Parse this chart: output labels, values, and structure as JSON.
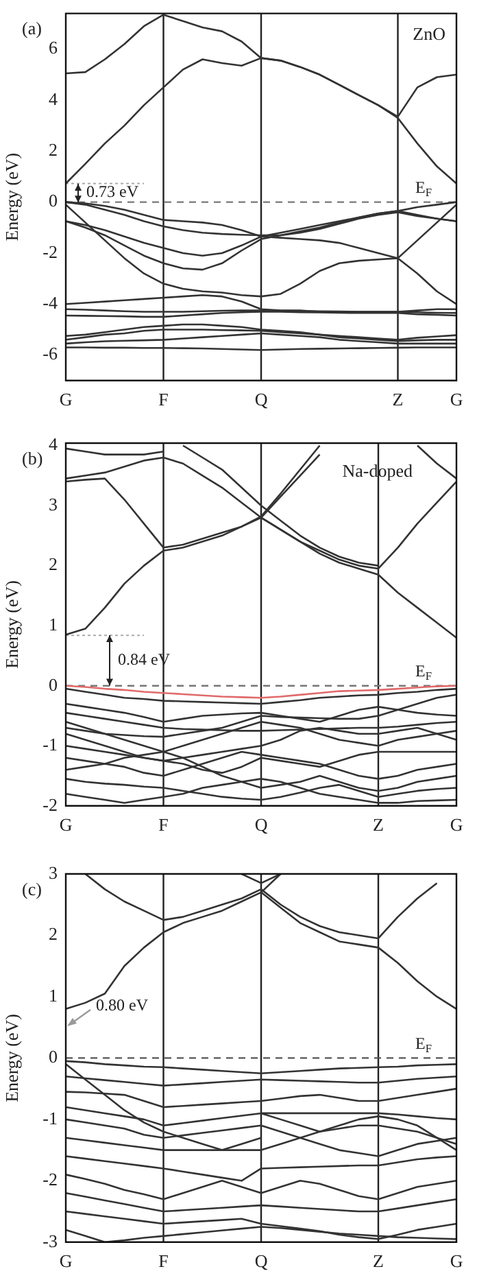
{
  "chart_data": [
    {
      "type": "line",
      "title": "(a)",
      "ylabel": "Energy (eV)",
      "categories": [
        "G",
        null,
        null,
        null,
        null,
        "F",
        null,
        null,
        null,
        null,
        "Q",
        null,
        null,
        null,
        null,
        null,
        null,
        "Z",
        null,
        null,
        "G"
      ],
      "ylim": [
        -7,
        7.4
      ],
      "yticks": [
        -6,
        -4,
        -2,
        0,
        2,
        4,
        6
      ],
      "ref_lines": [
        {
          "axis": "x",
          "value": "F",
          "color": "#222222"
        },
        {
          "axis": "x",
          "value": "Q",
          "color": "#222222"
        },
        {
          "axis": "x",
          "value": "Z",
          "color": "#222222"
        },
        {
          "axis": "y",
          "value": 0,
          "label": "E$_{F}$",
          "line_style": "dashed",
          "color": "#777777"
        },
        {
          "axis": "y",
          "value": 0.73,
          "line_style": "dotted",
          "color": "#aaaaaa"
        }
      ],
      "annotations": [
        "ZnO",
        "0.73 eV"
      ],
      "series": [
        {
          "color": "#333333",
          "values": [
            0.73,
            1.5,
            2.3,
            3.0,
            3.8,
            4.5,
            5.2,
            5.6,
            5.45,
            5.35,
            5.65,
            5.55,
            5.3,
            5.0,
            4.6,
            4.2,
            3.8,
            3.3,
            2.3,
            1.4,
            0.73
          ]
        },
        {
          "color": "#333333",
          "values": [
            5.05,
            5.1,
            5.6,
            6.2,
            6.9,
            7.35,
            7.1,
            6.85,
            6.7,
            6.3,
            5.65,
            5.55,
            5.3,
            5.0,
            4.6,
            4.2,
            3.8,
            3.35,
            4.5,
            4.9,
            5.0
          ]
        },
        {
          "color": "#333333",
          "values": [
            0,
            -0.05,
            -0.15,
            -0.3,
            -0.5,
            -0.7,
            -0.75,
            -0.8,
            -0.9,
            -1.1,
            -1.35,
            -1.2,
            -1.05,
            -0.9,
            -0.75,
            -0.6,
            -0.45,
            -0.35,
            -0.2,
            -0.1,
            0
          ]
        },
        {
          "color": "#333333",
          "values": [
            0,
            -0.1,
            -0.3,
            -0.5,
            -0.75,
            -0.95,
            -1.1,
            -1.2,
            -1.25,
            -1.28,
            -1.3,
            -1.3,
            -1.2,
            -1.05,
            -0.85,
            -0.65,
            -0.5,
            -0.4,
            -0.55,
            -0.65,
            -0.75
          ]
        },
        {
          "color": "#333333",
          "values": [
            -0.75,
            -0.9,
            -1.1,
            -1.35,
            -1.6,
            -1.8,
            -2.0,
            -2.1,
            -2.0,
            -1.7,
            -1.35,
            -1.4,
            -1.45,
            -1.5,
            -1.6,
            -1.8,
            -2.0,
            -2.2,
            -1.5,
            -0.8,
            -0.1
          ]
        },
        {
          "color": "#333333",
          "values": [
            -0.75,
            -1.0,
            -1.3,
            -1.7,
            -2.1,
            -2.4,
            -2.6,
            -2.65,
            -2.4,
            -1.9,
            -1.45,
            -1.3,
            -1.15,
            -1.0,
            -0.8,
            -0.6,
            -0.45,
            -0.35,
            -0.5,
            -0.65,
            -0.75
          ]
        },
        {
          "color": "#333333",
          "values": [
            -0.1,
            -0.8,
            -1.5,
            -2.2,
            -2.8,
            -3.2,
            -3.4,
            -3.5,
            -3.55,
            -3.65,
            -3.7,
            -3.6,
            -3.2,
            -2.7,
            -2.4,
            -2.3,
            -2.25,
            -2.2,
            -2.8,
            -3.5,
            -4.0
          ]
        },
        {
          "color": "#333333",
          "values": [
            -4.0,
            -3.95,
            -3.9,
            -3.85,
            -3.8,
            -3.75,
            -3.7,
            -3.65,
            -3.7,
            -3.9,
            -4.2,
            -4.25,
            -4.25,
            -4.3,
            -4.3,
            -4.3,
            -4.3,
            -4.3,
            -4.25,
            -4.2,
            -4.2
          ]
        },
        {
          "color": "#333333",
          "values": [
            -4.2,
            -4.22,
            -4.25,
            -4.28,
            -4.3,
            -4.3,
            -4.3,
            -4.28,
            -4.26,
            -4.25,
            -4.25,
            -4.26,
            -4.27,
            -4.28,
            -4.29,
            -4.3,
            -4.3,
            -4.3,
            -4.32,
            -4.34,
            -4.35
          ]
        },
        {
          "color": "#333333",
          "values": [
            -4.45,
            -4.46,
            -4.47,
            -4.48,
            -4.5,
            -4.5,
            -4.45,
            -4.4,
            -4.35,
            -4.32,
            -4.3,
            -4.3,
            -4.32,
            -4.33,
            -4.34,
            -4.35,
            -4.35,
            -4.35,
            -4.4,
            -4.42,
            -4.45
          ]
        },
        {
          "color": "#333333",
          "values": [
            -5.25,
            -5.2,
            -5.1,
            -5.0,
            -4.9,
            -4.85,
            -4.8,
            -4.8,
            -4.85,
            -4.9,
            -5.0,
            -5.05,
            -5.1,
            -5.2,
            -5.25,
            -5.3,
            -5.35,
            -5.4,
            -5.32,
            -5.27,
            -5.22
          ]
        },
        {
          "color": "#333333",
          "values": [
            -5.4,
            -5.3,
            -5.2,
            -5.15,
            -5.05,
            -5.0,
            -5.0,
            -5.0,
            -5.02,
            -5.03,
            -5.05,
            -5.1,
            -5.15,
            -5.2,
            -5.3,
            -5.35,
            -5.4,
            -5.45,
            -5.42,
            -5.4,
            -5.4
          ]
        },
        {
          "color": "#333333",
          "values": [
            -5.55,
            -5.5,
            -5.46,
            -5.44,
            -5.42,
            -5.4,
            -5.35,
            -5.3,
            -5.25,
            -5.2,
            -5.15,
            -5.2,
            -5.25,
            -5.3,
            -5.4,
            -5.45,
            -5.5,
            -5.55,
            -5.55,
            -5.55,
            -5.55
          ]
        },
        {
          "color": "#333333",
          "values": [
            -5.7,
            -5.7,
            -5.71,
            -5.71,
            -5.72,
            -5.72,
            -5.73,
            -5.74,
            -5.76,
            -5.78,
            -5.8,
            -5.78,
            -5.76,
            -5.75,
            -5.74,
            -5.73,
            -5.72,
            -5.71,
            -5.7,
            -5.7,
            -5.7
          ]
        }
      ]
    },
    {
      "type": "line",
      "title": "(b)",
      "ylabel": "Energy (eV)",
      "categories": [
        "G",
        null,
        null,
        null,
        null,
        "F",
        null,
        null,
        null,
        null,
        "Q",
        null,
        null,
        null,
        null,
        null,
        "Z",
        null,
        null,
        null,
        "G"
      ],
      "ylim": [
        -2,
        4.04
      ],
      "yticks": [
        -2,
        -1,
        0,
        1,
        2,
        3,
        4
      ],
      "ref_lines": [
        {
          "axis": "x",
          "value": "F",
          "color": "#222222"
        },
        {
          "axis": "x",
          "value": "Q",
          "color": "#222222"
        },
        {
          "axis": "x",
          "value": "Z",
          "color": "#222222"
        },
        {
          "axis": "y",
          "value": 0,
          "label": "E$_{F}$",
          "line_style": "dashed",
          "color": "#777777"
        },
        {
          "axis": "y",
          "value": 0.84,
          "line_style": "dotted",
          "color": "#aaaaaa"
        }
      ],
      "annotations": [
        "Na-doped",
        "0.84 eV"
      ],
      "series": [
        {
          "color": "#333333",
          "values": [
            0.85,
            0.95,
            1.3,
            1.7,
            2.0,
            2.25,
            2.3,
            2.4,
            2.5,
            2.65,
            2.82,
            3.2,
            3.6,
            4.0,
            null,
            null,
            null,
            null,
            null,
            null,
            null
          ]
        },
        {
          "color": "#333333",
          "values": [
            3.45,
            3.5,
            3.55,
            3.65,
            3.75,
            3.8,
            3.7,
            3.5,
            3.3,
            3.05,
            2.8,
            2.6,
            2.4,
            2.25,
            2.1,
            2.0,
            1.95,
            2.3,
            2.7,
            3.05,
            3.4
          ]
        },
        {
          "color": "#333333",
          "values": [
            3.4,
            3.43,
            3.45,
            3.1,
            2.7,
            2.3,
            2.35,
            2.45,
            2.55,
            2.65,
            2.8,
            3.15,
            3.5,
            3.85,
            null,
            null,
            null,
            null,
            null,
            null,
            null
          ]
        },
        {
          "color": "#333333",
          "values": [
            null,
            null,
            null,
            null,
            null,
            null,
            4.0,
            3.8,
            3.6,
            3.3,
            3.0,
            2.75,
            2.5,
            2.3,
            2.15,
            2.05,
            2.0,
            null,
            null,
            null,
            null
          ]
        },
        {
          "color": "#333333",
          "values": [
            null,
            null,
            null,
            null,
            null,
            null,
            null,
            null,
            null,
            null,
            2.8,
            2.6,
            2.4,
            2.2,
            2.05,
            1.95,
            1.85,
            1.55,
            1.3,
            1.05,
            0.8
          ]
        },
        {
          "color": "#333333",
          "values": [
            null,
            null,
            null,
            null,
            null,
            null,
            null,
            null,
            null,
            null,
            null,
            null,
            null,
            null,
            null,
            null,
            null,
            null,
            4.0,
            3.7,
            3.45
          ]
        },
        {
          "color": "#333333",
          "values": [
            3.95,
            3.9,
            3.85,
            3.85,
            3.85,
            3.9,
            null,
            null,
            null,
            null,
            null,
            null,
            null,
            null,
            null,
            null,
            null,
            null,
            null,
            null,
            null
          ]
        },
        {
          "color": "#333333",
          "values": [
            -0.05,
            -0.1,
            -0.15,
            -0.2,
            -0.22,
            -0.25,
            -0.26,
            -0.27,
            -0.28,
            -0.29,
            -0.3,
            -0.27,
            -0.24,
            -0.2,
            -0.18,
            -0.16,
            -0.15,
            -0.12,
            -0.1,
            -0.07,
            -0.05
          ]
        },
        {
          "color": "#333333",
          "values": [
            -0.3,
            -0.35,
            -0.4,
            -0.45,
            -0.52,
            -0.6,
            -0.55,
            -0.5,
            -0.48,
            -0.46,
            -0.45,
            -0.5,
            -0.55,
            -0.6,
            -0.5,
            -0.4,
            -0.35,
            -0.4,
            -0.45,
            -0.48,
            -0.5
          ]
        },
        {
          "color": "#333333",
          "values": [
            -0.45,
            -0.5,
            -0.55,
            -0.6,
            -0.65,
            -0.7,
            -0.72,
            -0.73,
            -0.74,
            -0.75,
            -0.75,
            -0.74,
            -0.73,
            -0.72,
            -0.71,
            -0.7,
            -0.7,
            -0.68,
            -0.65,
            -0.62,
            -0.6
          ]
        },
        {
          "color": "#333333",
          "values": [
            -0.6,
            -0.7,
            -0.8,
            -0.9,
            -1.0,
            -1.1,
            -1.0,
            -0.9,
            -0.8,
            -0.7,
            -0.6,
            -0.65,
            -0.7,
            -0.8,
            -0.9,
            -0.95,
            -1.0,
            -0.9,
            -0.85,
            -0.8,
            -0.75
          ]
        },
        {
          "color": "#333333",
          "values": [
            -0.8,
            -0.9,
            -1.0,
            -1.1,
            -1.2,
            -1.25,
            -1.2,
            -1.15,
            -1.1,
            -1.05,
            -1.0,
            -0.9,
            -0.75,
            -0.7,
            -0.75,
            -0.8,
            -0.8,
            -0.75,
            -0.7,
            -0.8,
            -0.9
          ]
        },
        {
          "color": "#333333",
          "values": [
            -1.0,
            -1.05,
            -1.1,
            -1.15,
            -1.2,
            -1.25,
            -1.3,
            -1.4,
            -1.45,
            -1.35,
            -1.2,
            -1.25,
            -1.3,
            -1.35,
            -1.25,
            -1.15,
            -1.1,
            -1.1,
            -1.1,
            -1.1,
            -1.1
          ]
        },
        {
          "color": "#333333",
          "values": [
            -1.2,
            -1.25,
            -1.3,
            -1.35,
            -1.45,
            -1.5,
            -1.4,
            -1.3,
            -1.2,
            -1.1,
            -1.15,
            -1.2,
            -1.25,
            -1.3,
            -1.4,
            -1.5,
            -1.55,
            -1.5,
            -1.4,
            -1.35,
            -1.3
          ]
        },
        {
          "color": "#333333",
          "values": [
            -1.4,
            -1.35,
            -1.3,
            -1.2,
            -1.15,
            -1.1,
            -1.2,
            -1.35,
            -1.5,
            -1.6,
            -1.7,
            -1.65,
            -1.6,
            -1.5,
            -1.6,
            -1.7,
            -1.75,
            -1.7,
            -1.6,
            -1.55,
            -1.5
          ]
        },
        {
          "color": "#333333",
          "values": [
            -1.55,
            -1.6,
            -1.63,
            -1.65,
            -1.68,
            -1.7,
            -1.75,
            -1.8,
            -1.85,
            -1.88,
            -1.9,
            -1.85,
            -1.78,
            -1.7,
            -1.65,
            -1.75,
            -1.85,
            -1.8,
            -1.75,
            -1.72,
            -1.7
          ]
        },
        {
          "color": "#333333",
          "values": [
            -1.8,
            -1.85,
            -1.9,
            -1.95,
            -1.9,
            -1.85,
            -1.8,
            -1.7,
            -1.65,
            -1.6,
            -1.55,
            -1.6,
            -1.7,
            -1.8,
            -1.85,
            -1.9,
            -1.95,
            -1.95,
            -1.92,
            -1.91,
            -1.9
          ]
        },
        {
          "color": "#333333",
          "values": [
            -0.7,
            -0.75,
            -0.8,
            -0.82,
            -0.84,
            -0.85,
            -0.8,
            -0.75,
            -0.7,
            -0.6,
            -0.5,
            -0.52,
            -0.53,
            -0.54,
            -0.55,
            -0.55,
            -0.5,
            -0.4,
            -0.3,
            -0.2,
            -0.15
          ]
        },
        {
          "color": "#e06a6a",
          "values": [
            0,
            -0.02,
            -0.05,
            -0.07,
            -0.1,
            -0.12,
            -0.14,
            -0.16,
            -0.18,
            -0.19,
            -0.2,
            -0.18,
            -0.15,
            -0.12,
            -0.09,
            -0.08,
            -0.07,
            -0.05,
            -0.03,
            -0.01,
            0
          ]
        }
      ]
    },
    {
      "type": "line",
      "title": "(c)",
      "ylabel": "Energy (eV)",
      "categories": [
        "G",
        null,
        null,
        null,
        null,
        "F",
        null,
        null,
        null,
        null,
        "Q",
        null,
        null,
        null,
        null,
        null,
        "Z",
        null,
        null,
        null,
        "G"
      ],
      "ylim": [
        -3,
        3
      ],
      "yticks": [
        -3,
        -2,
        -1,
        0,
        1,
        2,
        3
      ],
      "ref_lines": [
        {
          "axis": "x",
          "value": "F",
          "color": "#222222"
        },
        {
          "axis": "x",
          "value": "Q",
          "color": "#222222"
        },
        {
          "axis": "x",
          "value": "Z",
          "color": "#222222"
        },
        {
          "axis": "y",
          "value": 0,
          "label": "E$_{F}$",
          "line_style": "dashed",
          "color": "#555555"
        }
      ],
      "annotations": [
        "0.80 eV"
      ],
      "series": [
        {
          "color": "#333333",
          "values": [
            0.8,
            0.9,
            1.05,
            1.5,
            1.8,
            2.05,
            2.2,
            2.3,
            2.4,
            2.55,
            2.7,
            3.0,
            null,
            null,
            null,
            null,
            null,
            null,
            null,
            null,
            null
          ]
        },
        {
          "color": "#333333",
          "values": [
            null,
            3.0,
            2.75,
            2.55,
            2.4,
            2.25,
            2.3,
            2.4,
            2.5,
            2.6,
            2.75,
            2.5,
            2.3,
            2.15,
            2.05,
            2.0,
            1.95,
            2.3,
            2.6,
            2.85,
            null
          ]
        },
        {
          "color": "#333333",
          "values": [
            null,
            null,
            null,
            null,
            null,
            null,
            null,
            null,
            null,
            null,
            2.7,
            2.45,
            2.2,
            2.05,
            1.9,
            1.85,
            1.8,
            1.55,
            1.25,
            1.0,
            0.8
          ]
        },
        {
          "color": "#333333",
          "values": [
            null,
            null,
            null,
            null,
            null,
            null,
            null,
            null,
            null,
            3.0,
            2.85,
            3.0,
            null,
            null,
            null,
            null,
            null,
            null,
            null,
            null,
            null
          ]
        },
        {
          "color": "#333333",
          "values": [
            -0.05,
            -0.07,
            -0.1,
            -0.12,
            -0.14,
            -0.15,
            -0.17,
            -0.19,
            -0.21,
            -0.23,
            -0.25,
            -0.23,
            -0.21,
            -0.19,
            -0.17,
            -0.16,
            -0.15,
            -0.14,
            -0.12,
            -0.11,
            -0.1
          ]
        },
        {
          "color": "#333333",
          "values": [
            -0.3,
            -0.33,
            -0.36,
            -0.39,
            -0.42,
            -0.45,
            -0.43,
            -0.41,
            -0.39,
            -0.37,
            -0.35,
            -0.36,
            -0.37,
            -0.38,
            -0.39,
            -0.4,
            -0.4,
            -0.37,
            -0.34,
            -0.32,
            -0.3
          ]
        },
        {
          "color": "#333333",
          "values": [
            -0.55,
            -0.56,
            -0.58,
            -0.6,
            -0.7,
            -0.8,
            -0.78,
            -0.76,
            -0.74,
            -0.72,
            -0.7,
            -0.66,
            -0.62,
            -0.6,
            -0.65,
            -0.7,
            -0.7,
            -0.65,
            -0.6,
            -0.55,
            -0.5
          ]
        },
        {
          "color": "#333333",
          "values": [
            -0.8,
            -0.85,
            -0.9,
            -0.95,
            -1.0,
            -1.1,
            -1.06,
            -1.02,
            -0.98,
            -0.94,
            -0.9,
            -0.9,
            -0.9,
            -0.9,
            -0.9,
            -0.9,
            -0.9,
            -0.92,
            -0.95,
            -0.98,
            -1.0
          ]
        },
        {
          "color": "#333333",
          "values": [
            -1.0,
            -1.05,
            -1.1,
            -1.15,
            -1.25,
            -1.3,
            -1.26,
            -1.22,
            -1.18,
            -1.14,
            -1.1,
            -1.2,
            -1.3,
            -1.4,
            -1.5,
            -1.55,
            -1.6,
            -1.5,
            -1.4,
            -1.35,
            -1.3
          ]
        },
        {
          "color": "#333333",
          "values": [
            -1.3,
            -1.34,
            -1.38,
            -1.42,
            -1.46,
            -1.5,
            -1.5,
            -1.5,
            -1.5,
            -1.5,
            -1.5,
            -1.4,
            -1.3,
            -1.2,
            -1.15,
            -1.1,
            -1.1,
            -1.15,
            -1.2,
            -1.3,
            -1.4
          ]
        },
        {
          "color": "#333333",
          "values": [
            -1.6,
            -1.64,
            -1.68,
            -1.72,
            -1.76,
            -1.8,
            -1.85,
            -1.9,
            -1.95,
            -2.0,
            -1.8,
            -1.79,
            -1.78,
            -1.77,
            -1.76,
            -1.75,
            -1.75,
            -1.7,
            -1.65,
            -1.62,
            -1.6
          ]
        },
        {
          "color": "#333333",
          "values": [
            -1.9,
            -1.97,
            -2.05,
            -2.15,
            -2.22,
            -2.3,
            -2.2,
            -2.1,
            -2.0,
            -2.1,
            -2.2,
            -2.1,
            -2.0,
            -2.05,
            -2.15,
            -2.25,
            -2.3,
            -2.2,
            -2.1,
            -2.05,
            -2.0
          ]
        },
        {
          "color": "#333333",
          "values": [
            -2.2,
            -2.26,
            -2.32,
            -2.38,
            -2.44,
            -2.5,
            -2.48,
            -2.46,
            -2.44,
            -2.42,
            -2.4,
            -2.42,
            -2.44,
            -2.46,
            -2.48,
            -2.5,
            -2.5,
            -2.45,
            -2.4,
            -2.35,
            -2.3
          ]
        },
        {
          "color": "#333333",
          "values": [
            -2.5,
            -2.54,
            -2.58,
            -2.62,
            -2.66,
            -2.7,
            -2.68,
            -2.66,
            -2.64,
            -2.62,
            -2.7,
            -2.74,
            -2.78,
            -2.82,
            -2.88,
            -2.92,
            -2.95,
            -2.88,
            -2.8,
            -2.75,
            -2.7
          ]
        },
        {
          "color": "#333333",
          "values": [
            -2.8,
            -2.9,
            -3.0,
            -2.97,
            -2.93,
            -2.9,
            -2.87,
            -2.84,
            -2.81,
            -2.78,
            -2.75,
            -2.77,
            -2.8,
            -2.83,
            -2.86,
            -2.88,
            -2.9,
            -2.92,
            -2.93,
            -2.94,
            -2.95
          ]
        },
        {
          "color": "#333333",
          "values": [
            -0.1,
            -0.35,
            -0.6,
            -0.85,
            -1.05,
            -1.2,
            -1.3,
            -1.4,
            -1.5,
            -1.4,
            -1.3,
            null,
            null,
            null,
            null,
            null,
            null,
            null,
            null,
            null,
            null
          ]
        },
        {
          "color": "#333333",
          "values": [
            null,
            null,
            null,
            null,
            null,
            null,
            null,
            null,
            null,
            null,
            -0.9,
            -1.0,
            -1.1,
            -1.2,
            -1.1,
            -1.0,
            -0.95,
            -1.0,
            -1.1,
            -1.3,
            -1.5
          ]
        }
      ]
    }
  ]
}
